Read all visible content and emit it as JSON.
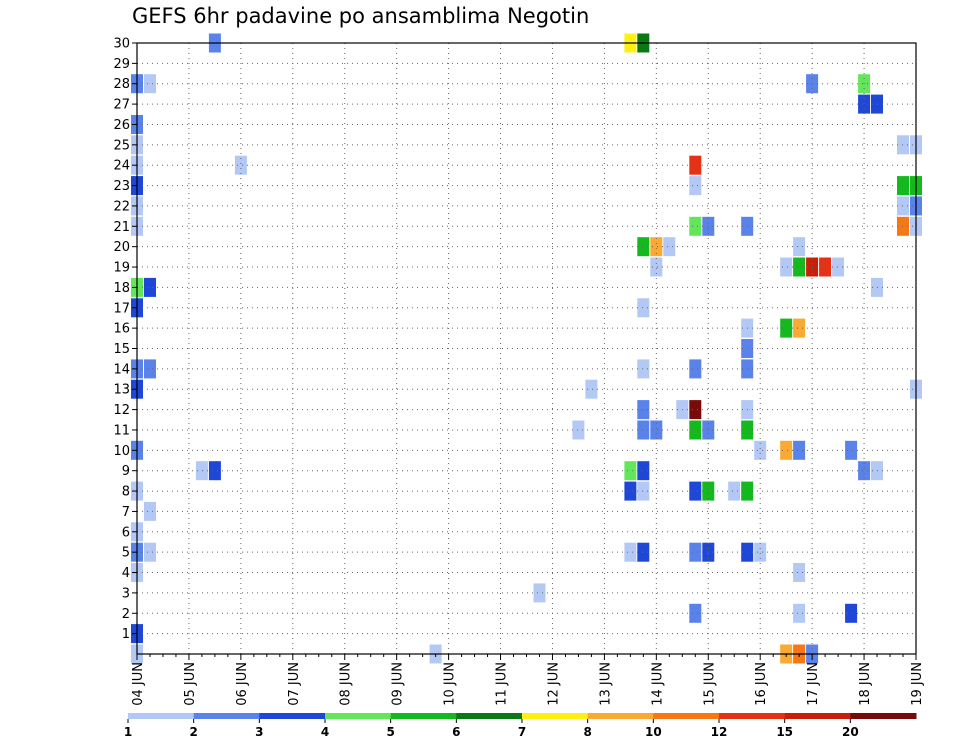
{
  "chart_data": {
    "type": "heatmap",
    "title": "GEFS 6hr padavine po ansamblima Negotin",
    "xlabel": "",
    "ylabel": "",
    "x_ticks": [
      "04 JUN",
      "05 JUN",
      "06 JUN",
      "07 JUN",
      "08 JUN",
      "09 JUN",
      "10 JUN",
      "11 JUN",
      "12 JUN",
      "13 JUN",
      "14 JUN",
      "15 JUN",
      "16 JUN",
      "17 JUN",
      "18 JUN",
      "19 JUN"
    ],
    "y_ticks": [
      "1",
      "2",
      "3",
      "4",
      "5",
      "6",
      "7",
      "8",
      "9",
      "10",
      "11",
      "12",
      "13",
      "14",
      "15",
      "16",
      "17",
      "18",
      "19",
      "20",
      "21",
      "22",
      "23",
      "24",
      "25",
      "26",
      "27",
      "28",
      "29",
      "30"
    ],
    "xlim_steps": [
      0,
      60
    ],
    "ylim_members": [
      0,
      30
    ],
    "grid": true,
    "colorbar": {
      "labels": [
        "1",
        "2",
        "3",
        "4",
        "5",
        "6",
        "7",
        "8",
        "10",
        "12",
        "15",
        "20"
      ],
      "colors": [
        "#b4c8f5",
        "#5a82eb",
        "#1e46d7",
        "#64e65a",
        "#14b91e",
        "#0a7814",
        "#fff014",
        "#faaa32",
        "#f57814",
        "#e63214",
        "#c81e0a",
        "#780a0a"
      ]
    },
    "cells": [
      {
        "step": 0,
        "member": 0,
        "class": 1
      },
      {
        "step": 0,
        "member": 1,
        "class": 3
      },
      {
        "step": 0,
        "member": 4,
        "class": 1
      },
      {
        "step": 0,
        "member": 5,
        "class": 2
      },
      {
        "step": 0,
        "member": 6,
        "class": 1
      },
      {
        "step": 0,
        "member": 8,
        "class": 1
      },
      {
        "step": 0,
        "member": 10,
        "class": 2
      },
      {
        "step": 0,
        "member": 13,
        "class": 3
      },
      {
        "step": 0,
        "member": 14,
        "class": 2
      },
      {
        "step": 0,
        "member": 17,
        "class": 3
      },
      {
        "step": 0,
        "member": 18,
        "class": 4
      },
      {
        "step": 0,
        "member": 21,
        "class": 1
      },
      {
        "step": 0,
        "member": 22,
        "class": 1
      },
      {
        "step": 0,
        "member": 23,
        "class": 3
      },
      {
        "step": 0,
        "member": 24,
        "class": 1
      },
      {
        "step": 0,
        "member": 25,
        "class": 1
      },
      {
        "step": 0,
        "member": 26,
        "class": 2
      },
      {
        "step": 0,
        "member": 28,
        "class": 2
      },
      {
        "step": 1,
        "member": 5,
        "class": 1
      },
      {
        "step": 1,
        "member": 7,
        "class": 1
      },
      {
        "step": 1,
        "member": 14,
        "class": 2
      },
      {
        "step": 1,
        "member": 18,
        "class": 3
      },
      {
        "step": 1,
        "member": 28,
        "class": 1
      },
      {
        "step": 5,
        "member": 9,
        "class": 1
      },
      {
        "step": 6,
        "member": 9,
        "class": 3
      },
      {
        "step": 6,
        "member": 30,
        "class": 2
      },
      {
        "step": 8,
        "member": 24,
        "class": 1
      },
      {
        "step": 23,
        "member": 0,
        "class": 1
      },
      {
        "step": 31,
        "member": 3,
        "class": 1
      },
      {
        "step": 34,
        "member": 11,
        "class": 1
      },
      {
        "step": 35,
        "member": 13,
        "class": 1
      },
      {
        "step": 38,
        "member": 5,
        "class": 1
      },
      {
        "step": 38,
        "member": 8,
        "class": 3
      },
      {
        "step": 38,
        "member": 9,
        "class": 4
      },
      {
        "step": 38,
        "member": 30,
        "class": 7
      },
      {
        "step": 39,
        "member": 5,
        "class": 3
      },
      {
        "step": 39,
        "member": 8,
        "class": 1
      },
      {
        "step": 39,
        "member": 9,
        "class": 3
      },
      {
        "step": 39,
        "member": 11,
        "class": 2
      },
      {
        "step": 39,
        "member": 12,
        "class": 2
      },
      {
        "step": 39,
        "member": 14,
        "class": 1
      },
      {
        "step": 39,
        "member": 17,
        "class": 1
      },
      {
        "step": 39,
        "member": 20,
        "class": 5
      },
      {
        "step": 39,
        "member": 30,
        "class": 6
      },
      {
        "step": 40,
        "member": 11,
        "class": 2
      },
      {
        "step": 40,
        "member": 19,
        "class": 1
      },
      {
        "step": 40,
        "member": 20,
        "class": 8
      },
      {
        "step": 41,
        "member": 20,
        "class": 1
      },
      {
        "step": 42,
        "member": 12,
        "class": 1
      },
      {
        "step": 43,
        "member": 2,
        "class": 2
      },
      {
        "step": 43,
        "member": 5,
        "class": 2
      },
      {
        "step": 43,
        "member": 8,
        "class": 3
      },
      {
        "step": 43,
        "member": 11,
        "class": 5
      },
      {
        "step": 43,
        "member": 12,
        "class": 12
      },
      {
        "step": 43,
        "member": 14,
        "class": 2
      },
      {
        "step": 43,
        "member": 21,
        "class": 4
      },
      {
        "step": 43,
        "member": 23,
        "class": 1
      },
      {
        "step": 43,
        "member": 24,
        "class": 10
      },
      {
        "step": 44,
        "member": 5,
        "class": 3
      },
      {
        "step": 44,
        "member": 8,
        "class": 5
      },
      {
        "step": 44,
        "member": 11,
        "class": 2
      },
      {
        "step": 44,
        "member": 21,
        "class": 2
      },
      {
        "step": 46,
        "member": 8,
        "class": 1
      },
      {
        "step": 47,
        "member": 5,
        "class": 3
      },
      {
        "step": 47,
        "member": 8,
        "class": 5
      },
      {
        "step": 47,
        "member": 11,
        "class": 5
      },
      {
        "step": 47,
        "member": 12,
        "class": 1
      },
      {
        "step": 47,
        "member": 14,
        "class": 2
      },
      {
        "step": 47,
        "member": 15,
        "class": 2
      },
      {
        "step": 47,
        "member": 16,
        "class": 1
      },
      {
        "step": 47,
        "member": 21,
        "class": 2
      },
      {
        "step": 48,
        "member": 5,
        "class": 1
      },
      {
        "step": 48,
        "member": 10,
        "class": 1
      },
      {
        "step": 50,
        "member": 0,
        "class": 8
      },
      {
        "step": 50,
        "member": 10,
        "class": 8
      },
      {
        "step": 50,
        "member": 16,
        "class": 5
      },
      {
        "step": 50,
        "member": 19,
        "class": 1
      },
      {
        "step": 51,
        "member": 0,
        "class": 9
      },
      {
        "step": 51,
        "member": 2,
        "class": 1
      },
      {
        "step": 51,
        "member": 4,
        "class": 1
      },
      {
        "step": 51,
        "member": 10,
        "class": 2
      },
      {
        "step": 51,
        "member": 16,
        "class": 8
      },
      {
        "step": 51,
        "member": 19,
        "class": 5
      },
      {
        "step": 51,
        "member": 20,
        "class": 1
      },
      {
        "step": 52,
        "member": 0,
        "class": 2
      },
      {
        "step": 52,
        "member": 19,
        "class": 11
      },
      {
        "step": 52,
        "member": 28,
        "class": 2
      },
      {
        "step": 53,
        "member": 19,
        "class": 10
      },
      {
        "step": 54,
        "member": 19,
        "class": 1
      },
      {
        "step": 55,
        "member": 2,
        "class": 3
      },
      {
        "step": 55,
        "member": 10,
        "class": 2
      },
      {
        "step": 56,
        "member": 9,
        "class": 2
      },
      {
        "step": 56,
        "member": 27,
        "class": 3
      },
      {
        "step": 56,
        "member": 28,
        "class": 4
      },
      {
        "step": 57,
        "member": 9,
        "class": 1
      },
      {
        "step": 57,
        "member": 18,
        "class": 1
      },
      {
        "step": 57,
        "member": 27,
        "class": 3
      },
      {
        "step": 59,
        "member": 21,
        "class": 9
      },
      {
        "step": 59,
        "member": 22,
        "class": 1
      },
      {
        "step": 59,
        "member": 23,
        "class": 5
      },
      {
        "step": 59,
        "member": 25,
        "class": 1
      },
      {
        "step": 60,
        "member": 13,
        "class": 1
      },
      {
        "step": 60,
        "member": 21,
        "class": 1
      },
      {
        "step": 60,
        "member": 22,
        "class": 2
      },
      {
        "step": 60,
        "member": 23,
        "class": 5
      },
      {
        "step": 60,
        "member": 25,
        "class": 1
      }
    ]
  }
}
